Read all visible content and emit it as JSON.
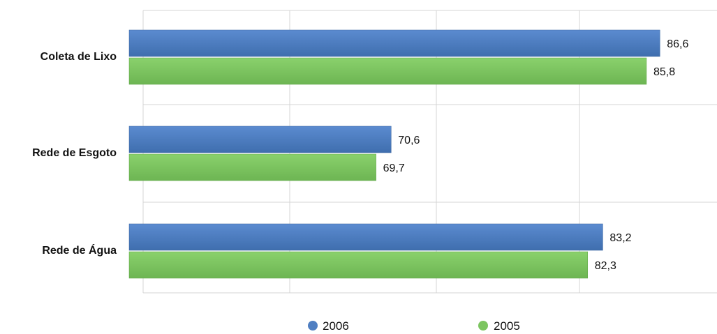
{
  "colors": {
    "series_2006": "#4f7fc2",
    "series_2006_dark": "#3c679f",
    "series_2005": "#7cc560",
    "series_2005_dark": "#5fa547",
    "grid": "#d4d4d4"
  },
  "chart_data": {
    "type": "bar",
    "orientation": "horizontal",
    "categories": [
      "Coleta de Lixo",
      "Rede de Esgoto",
      "Rede de Água"
    ],
    "series": [
      {
        "name": "2006",
        "values": [
          86.6,
          70.6,
          83.2
        ],
        "labels": [
          "86,6",
          "70,6",
          "83,2"
        ]
      },
      {
        "name": "2005",
        "values": [
          85.8,
          69.7,
          82.3
        ],
        "labels": [
          "85,8",
          "69,7",
          "82,3"
        ]
      }
    ],
    "xlim": [
      55,
      90
    ],
    "grid": true,
    "legend_position": "bottom",
    "title": "",
    "xlabel": "",
    "ylabel": ""
  }
}
